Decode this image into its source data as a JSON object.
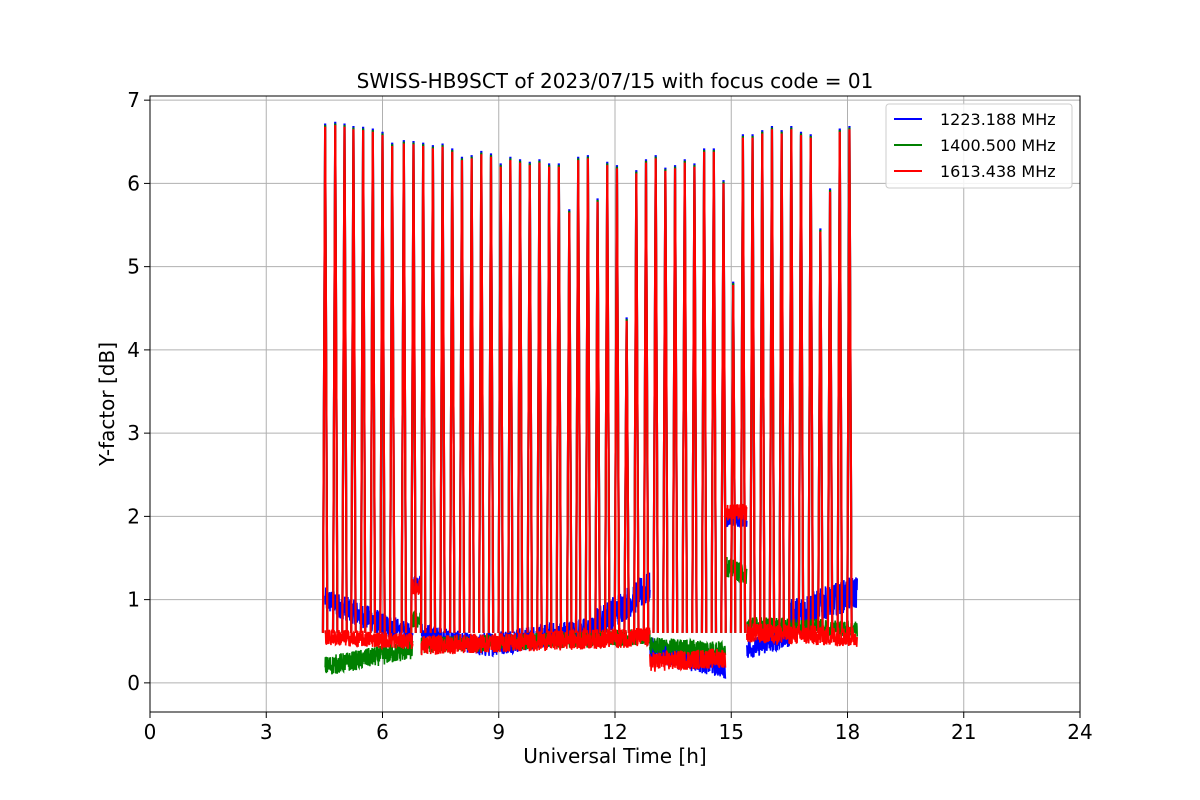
{
  "chart_data": {
    "type": "line",
    "title": "SWISS-HB9SCT of 2023/07/15 with focus code = 01",
    "xlabel": "Universal Time [h]",
    "ylabel": "Y-factor [dB]",
    "xlim": [
      0,
      24
    ],
    "ylim": [
      -0.35,
      7.05
    ],
    "xticks": [
      0,
      3,
      6,
      9,
      12,
      15,
      18,
      21,
      24
    ],
    "yticks": [
      0,
      1,
      2,
      3,
      4,
      5,
      6,
      7
    ],
    "grid": true,
    "legend_position": "top-right",
    "colors": {
      "1223.188 MHz": "#0000ff",
      "1400.500 MHz": "#008000",
      "1613.438 MHz": "#ff0000"
    },
    "spike_times": [
      4.52,
      4.78,
      5.02,
      5.25,
      5.5,
      5.75,
      6.0,
      6.25,
      6.55,
      6.8,
      7.05,
      7.3,
      7.55,
      7.8,
      8.05,
      8.3,
      8.55,
      8.8,
      9.05,
      9.3,
      9.55,
      9.8,
      10.05,
      10.3,
      10.55,
      10.82,
      11.05,
      11.3,
      11.55,
      11.8,
      12.05,
      12.3,
      12.55,
      12.8,
      13.05,
      13.3,
      13.55,
      13.8,
      14.05,
      14.3,
      14.55,
      14.8,
      15.05,
      15.3,
      15.55,
      15.8,
      16.05,
      16.3,
      16.55,
      16.8,
      17.05,
      17.3,
      17.55,
      17.8,
      18.05
    ],
    "spike_peaks": [
      6.68,
      6.7,
      6.68,
      6.65,
      6.64,
      6.62,
      6.58,
      6.45,
      6.48,
      6.47,
      6.45,
      6.42,
      6.44,
      6.38,
      6.28,
      6.3,
      6.35,
      6.32,
      6.2,
      6.28,
      6.25,
      6.22,
      6.25,
      6.2,
      6.2,
      5.65,
      6.28,
      6.3,
      5.78,
      6.22,
      6.18,
      4.35,
      6.12,
      6.25,
      6.3,
      6.15,
      6.18,
      6.25,
      6.2,
      6.38,
      6.38,
      6.0,
      4.78,
      6.55,
      6.55,
      6.6,
      6.65,
      6.6,
      6.65,
      6.58,
      6.55,
      5.42,
      5.9,
      6.62,
      6.65
    ],
    "series": [
      {
        "name": "1223.188 MHz",
        "segments": [
          {
            "x_start": 4.52,
            "x_end": 6.78,
            "y_start": 1.0,
            "y_end": 0.55,
            "noise": 0.15
          },
          {
            "x_start": 6.78,
            "x_end": 7.0,
            "y_start": 1.2,
            "y_end": 1.2,
            "noise": 0.1
          },
          {
            "x_start": 7.0,
            "x_end": 8.5,
            "y_start": 0.6,
            "y_end": 0.45,
            "noise": 0.12
          },
          {
            "x_start": 8.5,
            "x_end": 11.5,
            "y_start": 0.45,
            "y_end": 0.65,
            "noise": 0.15
          },
          {
            "x_start": 11.5,
            "x_end": 12.9,
            "y_start": 0.7,
            "y_end": 1.15,
            "noise": 0.2
          },
          {
            "x_start": 12.9,
            "x_end": 14.85,
            "y_start": 0.4,
            "y_end": 0.2,
            "noise": 0.15
          },
          {
            "x_start": 14.85,
            "x_end": 15.4,
            "y_start": 1.95,
            "y_end": 1.95,
            "noise": 0.08
          },
          {
            "x_start": 15.4,
            "x_end": 16.5,
            "y_start": 0.4,
            "y_end": 0.55,
            "noise": 0.12
          },
          {
            "x_start": 16.5,
            "x_end": 18.25,
            "y_start": 0.8,
            "y_end": 1.1,
            "noise": 0.2
          }
        ]
      },
      {
        "name": "1400.500 MHz",
        "segments": [
          {
            "x_start": 4.52,
            "x_end": 6.78,
            "y_start": 0.2,
            "y_end": 0.4,
            "noise": 0.12
          },
          {
            "x_start": 6.78,
            "x_end": 7.0,
            "y_start": 0.75,
            "y_end": 0.75,
            "noise": 0.1
          },
          {
            "x_start": 7.0,
            "x_end": 12.9,
            "y_start": 0.45,
            "y_end": 0.55,
            "noise": 0.1
          },
          {
            "x_start": 12.9,
            "x_end": 14.85,
            "y_start": 0.45,
            "y_end": 0.4,
            "noise": 0.1
          },
          {
            "x_start": 14.85,
            "x_end": 15.4,
            "y_start": 1.4,
            "y_end": 1.3,
            "noise": 0.12
          },
          {
            "x_start": 15.4,
            "x_end": 18.25,
            "y_start": 0.7,
            "y_end": 0.65,
            "noise": 0.1
          }
        ]
      },
      {
        "name": "1613.438 MHz",
        "segments": [
          {
            "x_start": 4.52,
            "x_end": 6.78,
            "y_start": 0.55,
            "y_end": 0.5,
            "noise": 0.1
          },
          {
            "x_start": 6.78,
            "x_end": 7.0,
            "y_start": 1.15,
            "y_end": 1.15,
            "noise": 0.1
          },
          {
            "x_start": 7.0,
            "x_end": 12.9,
            "y_start": 0.45,
            "y_end": 0.55,
            "noise": 0.12
          },
          {
            "x_start": 12.9,
            "x_end": 14.85,
            "y_start": 0.25,
            "y_end": 0.3,
            "noise": 0.12
          },
          {
            "x_start": 14.85,
            "x_end": 15.4,
            "y_start": 2.05,
            "y_end": 2.05,
            "noise": 0.1
          },
          {
            "x_start": 15.4,
            "x_end": 18.25,
            "y_start": 0.6,
            "y_end": 0.55,
            "noise": 0.12
          }
        ]
      }
    ]
  }
}
